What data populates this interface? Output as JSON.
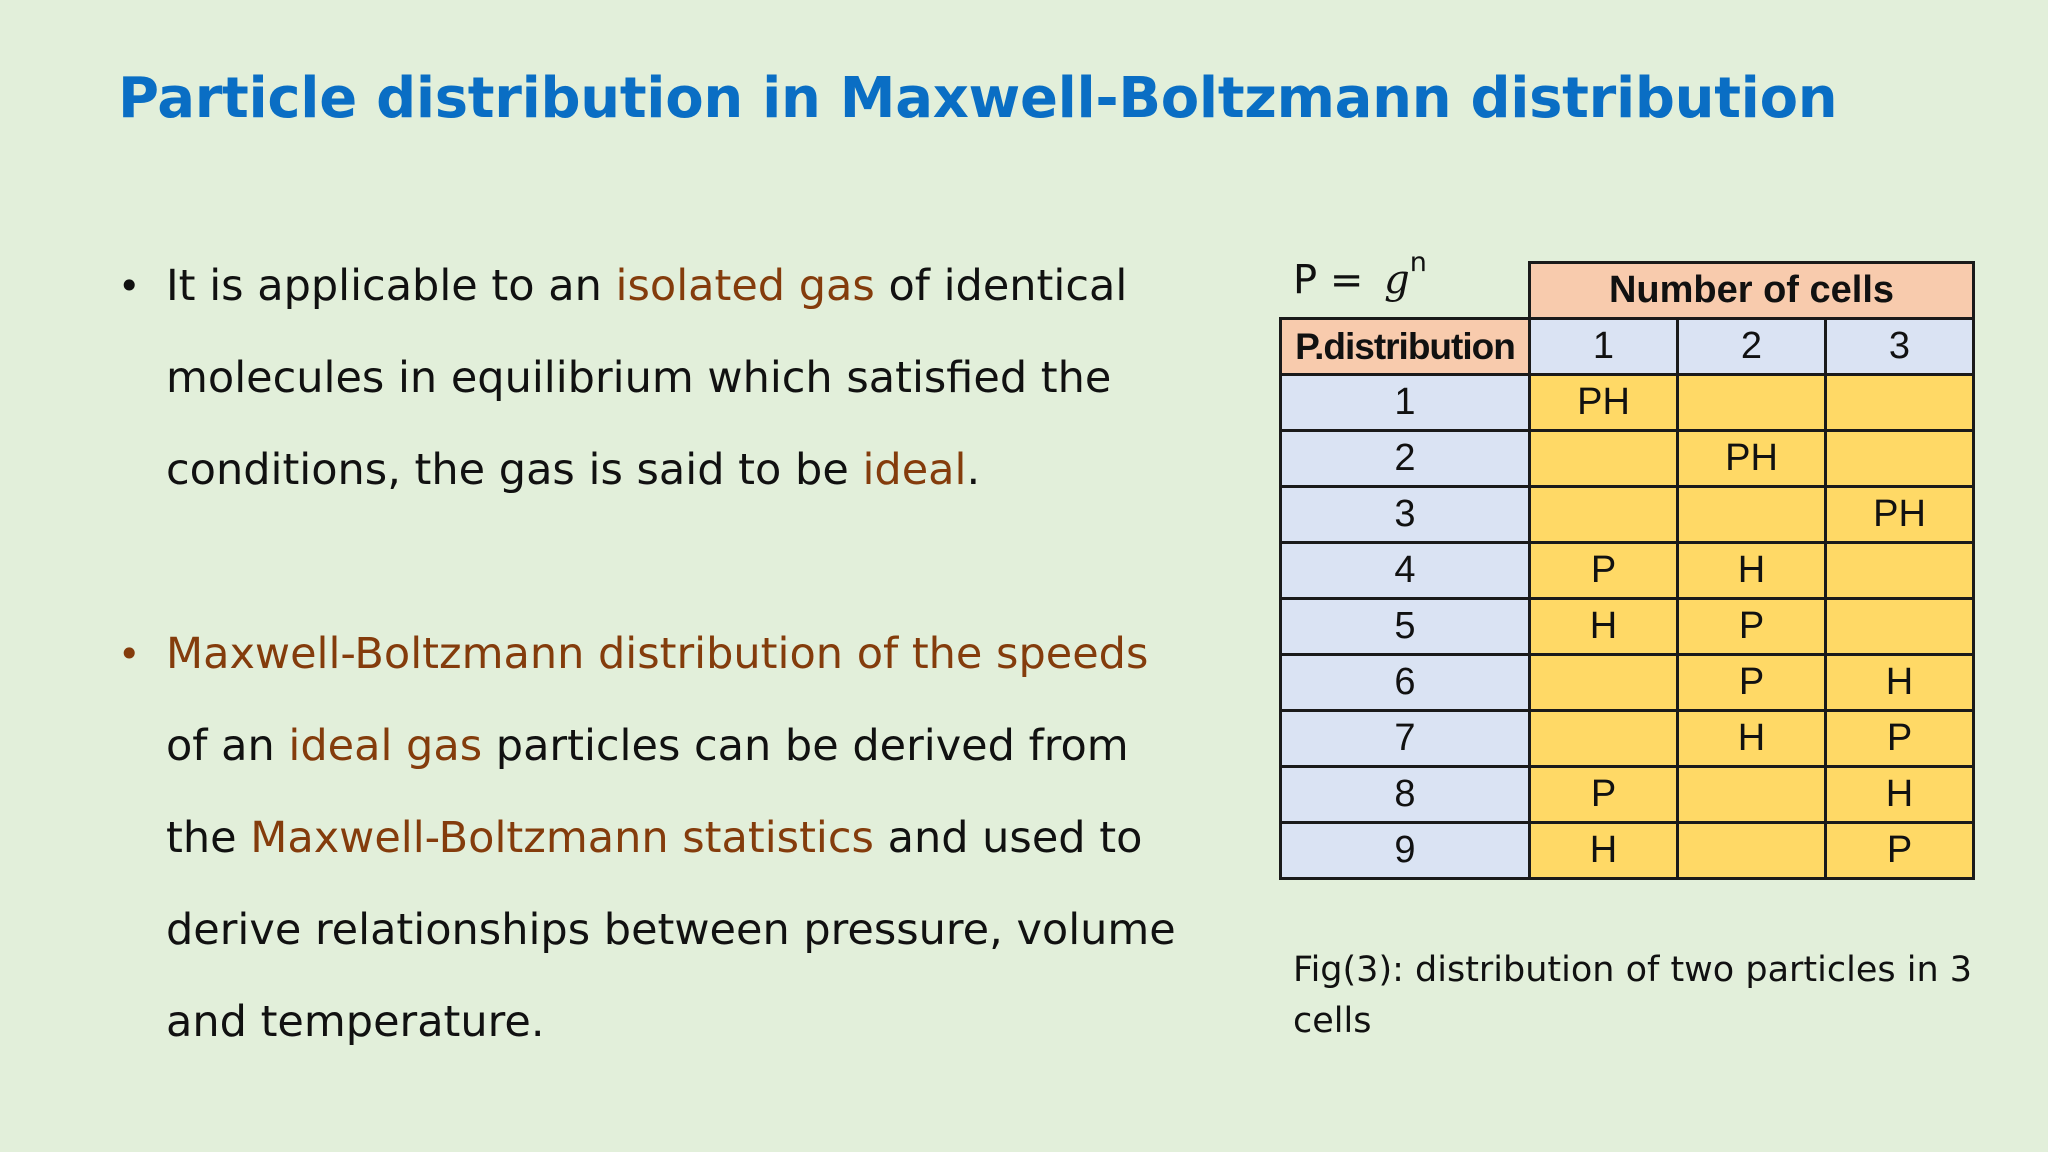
{
  "title": "Particle distribution in Maxwell-Boltzmann distribution",
  "bullets": [
    {
      "parts": {
        "p1": "It is applicable to an ",
        "p2": "isolated gas",
        "p3": " of identical molecules in equilibrium which satisfied the conditions, the gas is said to be ",
        "p4": "ideal",
        "p5": "."
      }
    },
    {
      "parts": {
        "p1": "Maxwell-Boltzmann distribution of the speeds",
        "p2": " of an ",
        "p3": "ideal gas",
        "p4": " particles can be derived from the ",
        "p5": "Maxwell-Boltzmann statistics",
        "p6": " and used to derive relationships between pressure, volume and temperature."
      }
    }
  ],
  "formula": {
    "lhs": "P =",
    "base": "g",
    "exponent": "n"
  },
  "table": {
    "group_header": "Number of cells",
    "row_header": "P.distribution",
    "columns": [
      "1",
      "2",
      "3"
    ],
    "rows": [
      {
        "n": "1",
        "c": [
          "PH",
          "",
          ""
        ]
      },
      {
        "n": "2",
        "c": [
          "",
          "PH",
          ""
        ]
      },
      {
        "n": "3",
        "c": [
          "",
          "",
          "PH"
        ]
      },
      {
        "n": "4",
        "c": [
          "P",
          "H",
          ""
        ]
      },
      {
        "n": "5",
        "c": [
          "H",
          "P",
          ""
        ]
      },
      {
        "n": "6",
        "c": [
          "",
          "P",
          "H"
        ]
      },
      {
        "n": "7",
        "c": [
          "",
          "H",
          "P"
        ]
      },
      {
        "n": "8",
        "c": [
          "P",
          "",
          "H"
        ]
      },
      {
        "n": "9",
        "c": [
          "H",
          "",
          "P"
        ]
      }
    ]
  },
  "caption": "Fig(3): distribution of two particles in 3 cells",
  "colors": {
    "background": "#e2efda",
    "title": "#0a6ec4",
    "highlight": "#843c0c",
    "header_fill": "#f8cbad",
    "index_fill": "#dae3f3",
    "cell_fill": "#ffd966"
  }
}
